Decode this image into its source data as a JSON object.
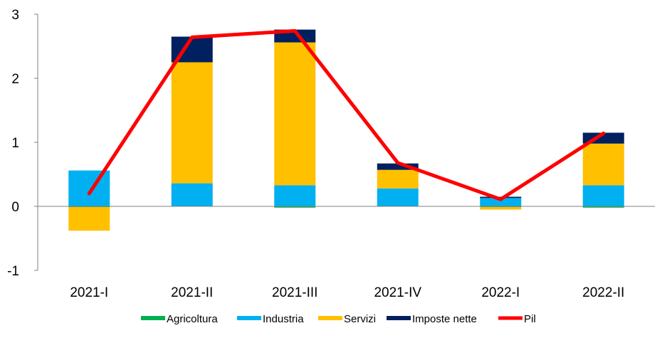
{
  "chart_data": {
    "type": "bar",
    "stacked": true,
    "categories": [
      "2021-I",
      "2021-II",
      "2021-III",
      "2021-IV",
      "2022-I",
      "2022-II"
    ],
    "series": [
      {
        "name": "Agricoltura",
        "kind": "bar",
        "color": "#00b050",
        "values": [
          -0.01,
          0.0,
          -0.02,
          0.0,
          -0.01,
          -0.02
        ]
      },
      {
        "name": "Industria",
        "kind": "bar",
        "color": "#00b0f0",
        "values": [
          0.56,
          0.36,
          0.33,
          0.28,
          0.13,
          0.33
        ]
      },
      {
        "name": "Servizi",
        "kind": "bar",
        "color": "#ffc000",
        "values": [
          -0.37,
          1.89,
          2.23,
          0.29,
          -0.04,
          0.65
        ]
      },
      {
        "name": "Imposte nette",
        "kind": "bar",
        "color": "#002060",
        "values": [
          0.0,
          0.4,
          0.2,
          0.1,
          0.02,
          0.17
        ]
      },
      {
        "name": "Pil",
        "kind": "line",
        "color": "#ff0000",
        "values": [
          0.2,
          2.64,
          2.74,
          0.68,
          0.11,
          1.14
        ]
      }
    ],
    "ylim": [
      -1,
      3
    ],
    "yticks": [
      "-1",
      "0",
      "1",
      "2",
      "3"
    ],
    "ytick_values": [
      -1,
      0,
      1,
      2,
      3
    ],
    "grid": false,
    "legend_position": "bottom"
  }
}
